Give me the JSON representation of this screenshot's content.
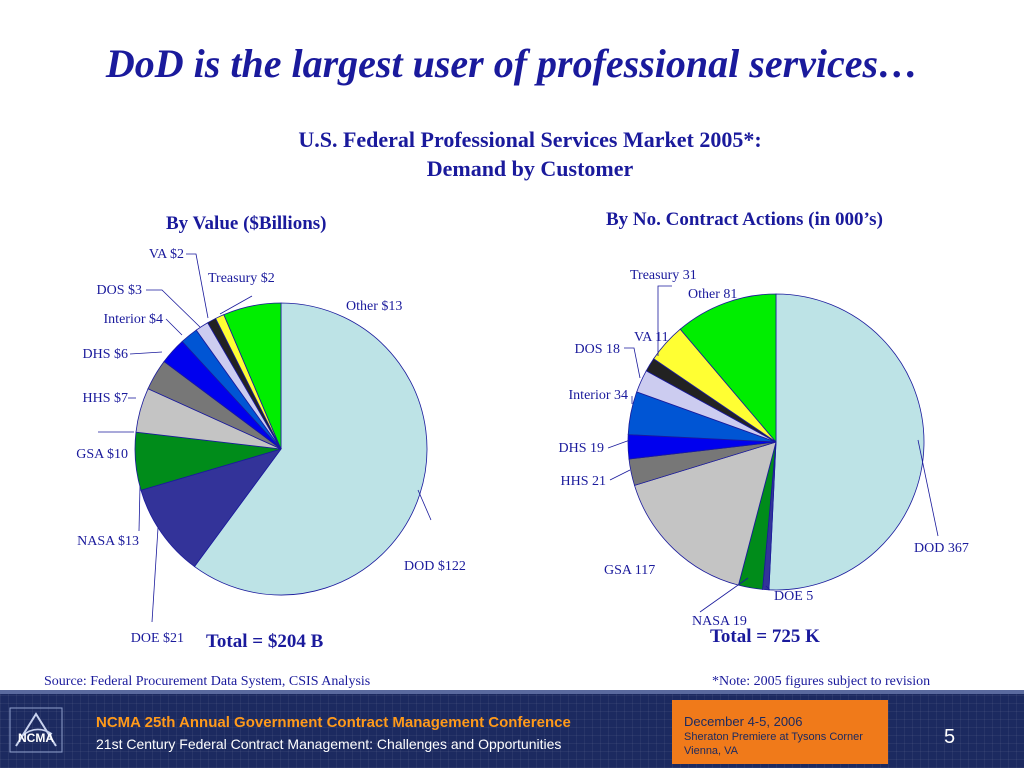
{
  "slide": {
    "title": "DoD is the largest user of professional services…",
    "chart_title_line1": "U.S. Federal Professional Services Market 2005*:",
    "chart_title_line2": "Demand by Customer",
    "source": "Source:    Federal Procurement Data System,  CSIS Analysis",
    "note": "*Note:  2005 figures  subject to revision"
  },
  "chart_data": [
    {
      "type": "pie",
      "title": "By Value ($Billions)",
      "total_label": "Total = $204 B",
      "slices": [
        {
          "label": "DOD $122",
          "value": 122,
          "color": "#bde3e6"
        },
        {
          "label": "DOE $21",
          "value": 21,
          "color": "#333399"
        },
        {
          "label": "NASA $13",
          "value": 13,
          "color": "#008c1a"
        },
        {
          "label": "GSA $10",
          "value": 10,
          "color": "#c4c4c4"
        },
        {
          "label": "HHS $7",
          "value": 7,
          "color": "#777777"
        },
        {
          "label": "DHS $6",
          "value": 6,
          "color": "#0000ee"
        },
        {
          "label": "Interior $4",
          "value": 4,
          "color": "#0055d4"
        },
        {
          "label": "DOS $3",
          "value": 3,
          "color": "#ccccf0"
        },
        {
          "label": "VA $2",
          "value": 2,
          "color": "#222222"
        },
        {
          "label": "Treasury $2",
          "value": 2,
          "color": "#ffff33"
        },
        {
          "label": "Other $13",
          "value": 13,
          "color": "#00ee00"
        }
      ]
    },
    {
      "type": "pie",
      "title": "By No. Contract Actions (in 000’s)",
      "total_label": "Total = 725 K",
      "slices": [
        {
          "label": "DOD 367",
          "value": 367,
          "color": "#bde3e6"
        },
        {
          "label": "DOE 5",
          "value": 5,
          "color": "#333399"
        },
        {
          "label": "NASA 19",
          "value": 19,
          "color": "#008c1a"
        },
        {
          "label": "GSA 117",
          "value": 117,
          "color": "#c4c4c4"
        },
        {
          "label": "HHS 21",
          "value": 21,
          "color": "#777777"
        },
        {
          "label": "DHS 19",
          "value": 19,
          "color": "#0000ee"
        },
        {
          "label": "Interior 34",
          "value": 34,
          "color": "#0055d4"
        },
        {
          "label": "DOS 18",
          "value": 18,
          "color": "#ccccf0"
        },
        {
          "label": "VA 11",
          "value": 11,
          "color": "#222222"
        },
        {
          "label": "Treasury 31",
          "value": 31,
          "color": "#ffff33"
        },
        {
          "label": "Other 81",
          "value": 81,
          "color": "#00ee00"
        }
      ]
    }
  ],
  "footer": {
    "conference_title": "NCMA 25th Annual Government Contract Management Conference",
    "conference_subtitle": "21st Century Federal Contract Management: Challenges and Opportunities",
    "date": "December 4-5, 2006",
    "venue": "Sheraton Premiere at Tysons Corner",
    "city": "Vienna, VA",
    "page_number": "5",
    "logo_text": "NCMA"
  }
}
